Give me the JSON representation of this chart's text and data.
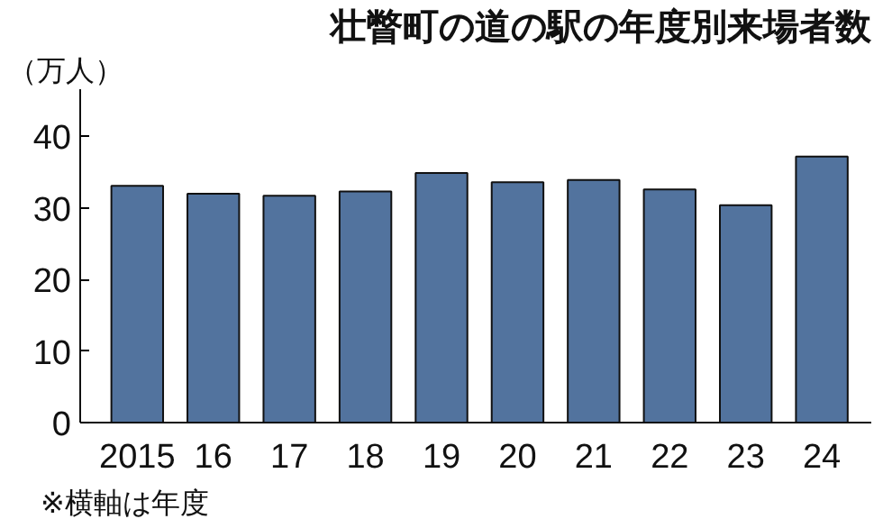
{
  "chart_data": {
    "type": "bar",
    "title": "壮瞥町の道の駅の年度別来場者数",
    "ylabel": "（万人）",
    "categories": [
      "2015",
      "16",
      "17",
      "18",
      "19",
      "20",
      "21",
      "22",
      "23",
      "24"
    ],
    "values": [
      33.1,
      32.0,
      31.7,
      32.3,
      34.9,
      33.6,
      33.9,
      32.6,
      30.4,
      37.2
    ],
    "color": "#52739e",
    "ylim": [
      0,
      46.6
    ],
    "yticks": [
      0,
      10,
      20,
      30,
      40
    ],
    "grid": false,
    "annotations": [
      "※横軸は年度"
    ]
  }
}
